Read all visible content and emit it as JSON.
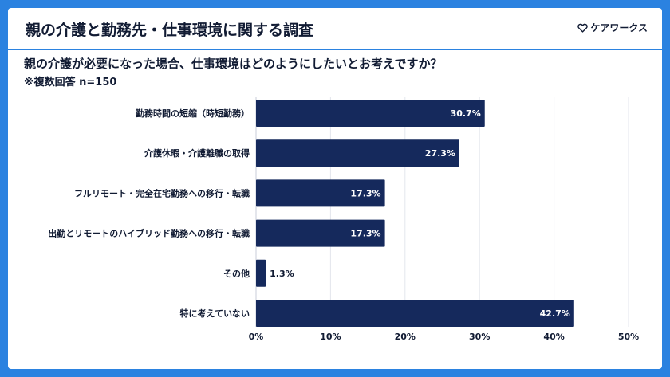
{
  "header": {
    "title": "親の介護と勤務先・仕事環境に関する調査",
    "brand": "ケアワークス"
  },
  "question": "親の介護が必要になった場合、仕事環境はどのようにしたいとお考えですか？",
  "note": "※複数回答 n=150",
  "colors": {
    "bar": "#15295c",
    "accent": "#2b82e0",
    "text": "#111b33"
  },
  "chart_data": {
    "type": "bar",
    "orientation": "horizontal",
    "categories": [
      "勤務時間の短縮（時短勤務）",
      "介護休暇・介護離職の取得",
      "フルリモート・完全在宅勤務への移行・転職",
      "出勤とリモートのハイブリッド勤務への移行・転職",
      "その他",
      "特に考えていない"
    ],
    "values": [
      30.7,
      27.3,
      17.3,
      17.3,
      1.3,
      42.7
    ],
    "value_labels": [
      "30.7%",
      "27.3%",
      "17.3%",
      "17.3%",
      "1.3%",
      "42.7%"
    ],
    "xlim": [
      0,
      50
    ],
    "x_ticks": [
      0,
      10,
      20,
      30,
      40,
      50
    ],
    "x_tick_labels": [
      "0%",
      "10%",
      "20%",
      "30%",
      "40%",
      "50%"
    ],
    "grid": true
  }
}
